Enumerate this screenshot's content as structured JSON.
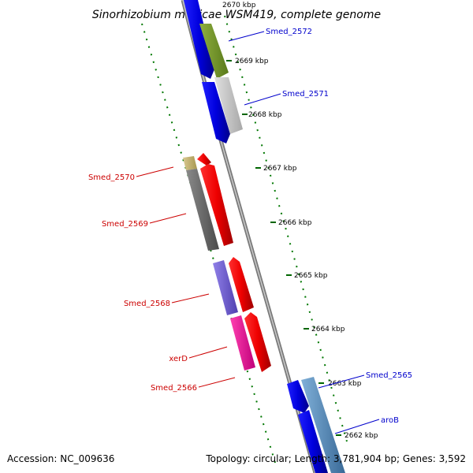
{
  "title": "Sinorhizobium medicae WSM419, complete genome",
  "footer": {
    "accession": "Accession: NC_009636",
    "summary": "Topology: circular; Length: 3,781,904 bp; Genes: 3,592"
  },
  "ticks": [
    "2670 kbp",
    "2669 kbp",
    "2668 kbp",
    "2667 kbp",
    "2666 kbp",
    "2665 kbp",
    "2664 kbp",
    "2663 kbp",
    "2662 kbp"
  ],
  "genes_forward": [
    {
      "label": "Smed_2572",
      "color": "#0000cc"
    },
    {
      "label": "Smed_2571",
      "color": "#0000cc"
    },
    {
      "label": "Smed_2565",
      "color": "#0000cc"
    },
    {
      "label": "aroB",
      "color": "#0000cc"
    }
  ],
  "genes_reverse": [
    {
      "label": "Smed_2570",
      "color": "#cc0000"
    },
    {
      "label": "Smed_2569",
      "color": "#cc0000"
    },
    {
      "label": "Smed_2568",
      "color": "#cc0000"
    },
    {
      "label": "xerD",
      "color": "#cc0000"
    },
    {
      "label": "Smed_2566",
      "color": "#cc0000"
    }
  ],
  "colors": {
    "backbone": "#8a8a8a",
    "forward_gene": "#0000ee",
    "reverse_gene": "#ee0000",
    "gc_dots": "#007700"
  }
}
